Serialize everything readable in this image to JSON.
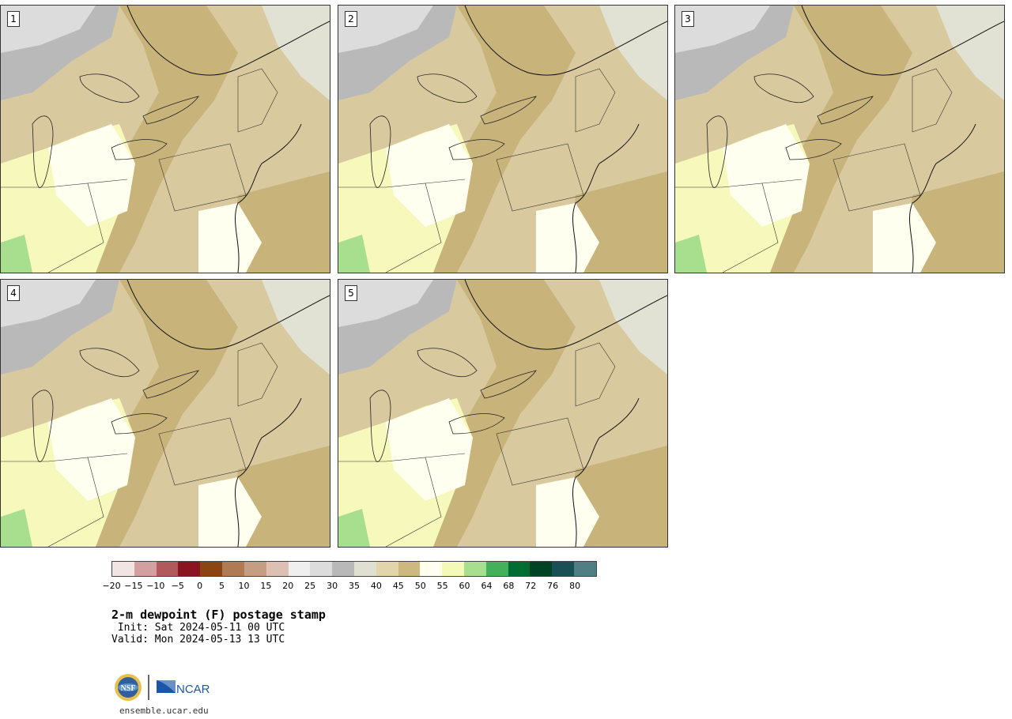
{
  "panels": [
    {
      "label": "1"
    },
    {
      "label": "2"
    },
    {
      "label": "3"
    },
    {
      "label": "4"
    },
    {
      "label": "5"
    }
  ],
  "colorbar": {
    "colors": [
      "#f3e4e4",
      "#d39fa1",
      "#b05a5e",
      "#8a1521",
      "#8b4513",
      "#b07a55",
      "#c59d82",
      "#ddc0b3",
      "#efefef",
      "#dcdcdc",
      "#b8b8b8",
      "#dfdfd2",
      "#e3d5ab",
      "#cdb87f",
      "#fffff0",
      "#f5f9b7",
      "#a8df8e",
      "#45b05c",
      "#006e32",
      "#004224",
      "#1b4f56",
      "#4f7f84"
    ],
    "tick_labels": [
      "−20",
      "−15",
      "−10",
      "−5",
      "0",
      "5",
      "10",
      "15",
      "20",
      "25",
      "30",
      "35",
      "40",
      "45",
      "50",
      "55",
      "60",
      "64",
      "68",
      "72",
      "76",
      "80"
    ]
  },
  "title": "2-m dewpoint (F) postage stamp",
  "init_text": " Init: Sat 2024-05-11 00 UTC",
  "valid_text": "Valid: Mon 2024-05-13 13 UTC",
  "logos": {
    "nsf": "NSF",
    "ncar": "NCAR"
  },
  "url": "ensemble.ucar.edu"
}
